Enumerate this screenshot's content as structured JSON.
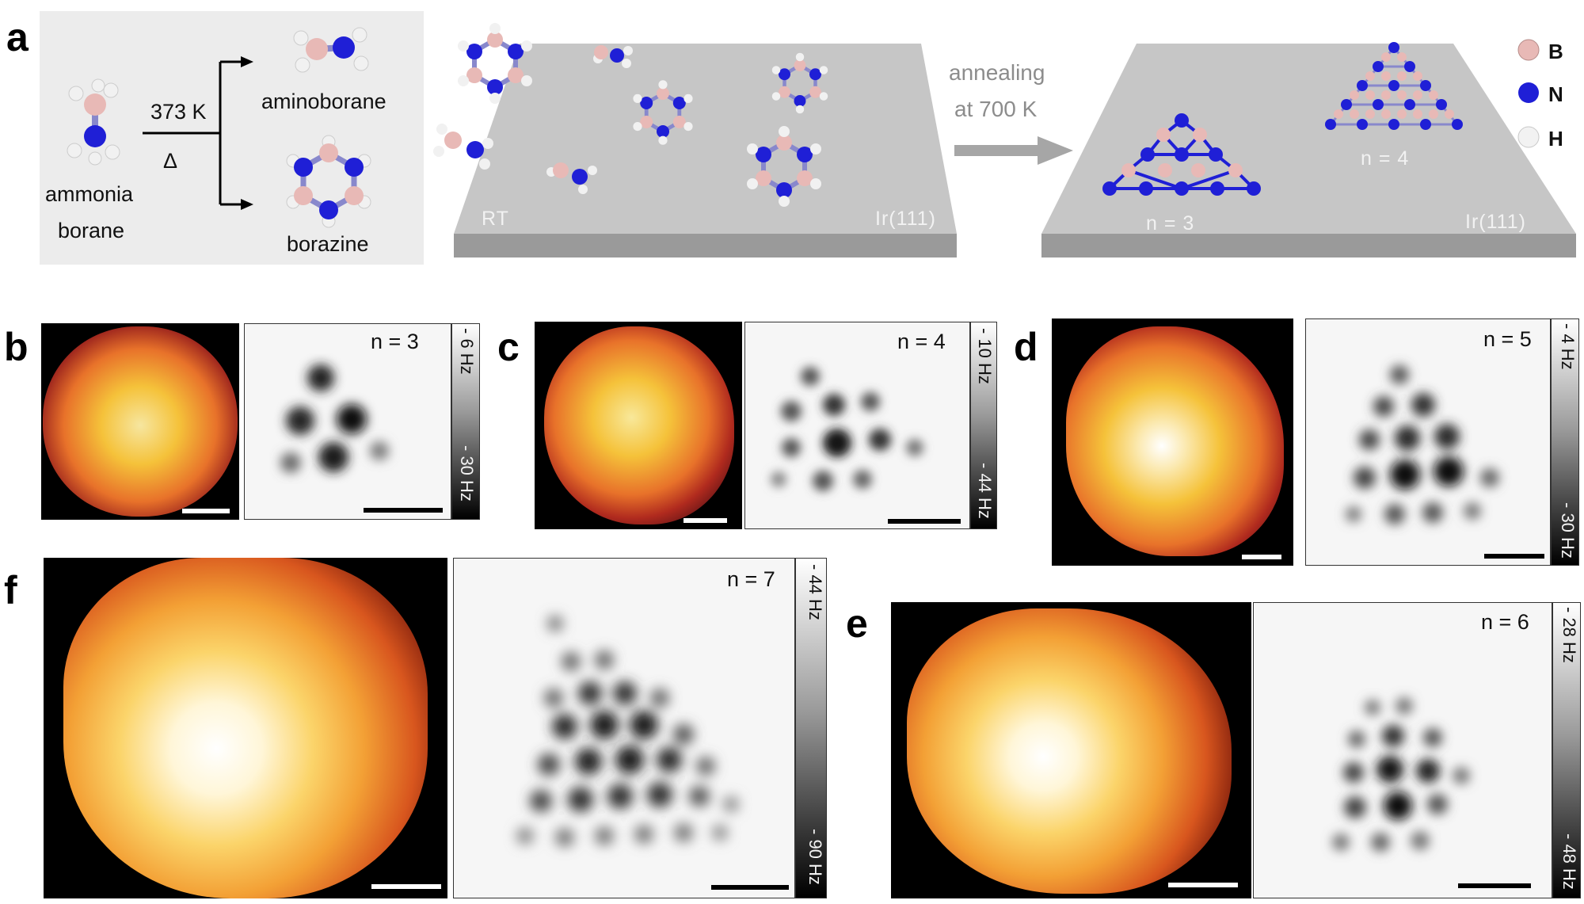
{
  "panel_a": {
    "label": "a",
    "scheme": {
      "reactant": [
        "ammonia",
        "borane"
      ],
      "temperature": "373 K",
      "heat_symbol": "Δ",
      "product_top": "aminoborane",
      "product_bottom": "borazine"
    },
    "slab_left": {
      "corner_left": "RT",
      "corner_right": "Ir(111)"
    },
    "annealing": [
      "annealing",
      "at 700 K"
    ],
    "slab_right": {
      "corner_right": "Ir(111)",
      "cluster_left": "n = 3",
      "cluster_right": "n = 4"
    },
    "legend": [
      {
        "label": "B",
        "color": "#e8b9b6"
      },
      {
        "label": "N",
        "color": "#1f1fd6"
      },
      {
        "label": "H",
        "color": "#f2f2f2"
      }
    ]
  },
  "panels": {
    "b": {
      "label": "b",
      "n": "n = 3",
      "cbar_top": "- 6 Hz",
      "cbar_bottom": "- 30 Hz"
    },
    "c": {
      "label": "c",
      "n": "n = 4",
      "cbar_top": "- 10 Hz",
      "cbar_bottom": "- 44 Hz"
    },
    "d": {
      "label": "d",
      "n": "n = 5",
      "cbar_top": "- 4 Hz",
      "cbar_bottom": "- 30 Hz"
    },
    "f": {
      "label": "f",
      "n": "n = 7",
      "cbar_top": "- 44 Hz",
      "cbar_bottom": "- 90 Hz"
    },
    "e": {
      "label": "e",
      "n": "n = 6",
      "cbar_top": "- 28 Hz",
      "cbar_bottom": "- 48 Hz"
    }
  },
  "colors": {
    "atom_B": "#e8b9b6",
    "atom_N": "#1f1fd6",
    "atom_H": "#f2f2f2",
    "slab": "#c4c4c4"
  }
}
